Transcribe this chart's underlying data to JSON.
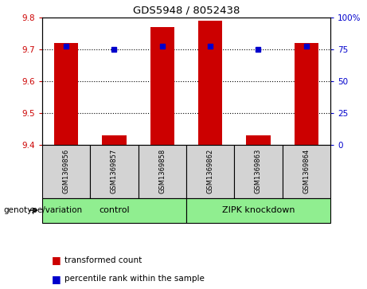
{
  "title": "GDS5948 / 8052438",
  "samples": [
    "GSM1369856",
    "GSM1369857",
    "GSM1369858",
    "GSM1369862",
    "GSM1369863",
    "GSM1369864"
  ],
  "red_values": [
    9.72,
    9.43,
    9.77,
    9.79,
    9.43,
    9.72
  ],
  "blue_values": [
    9.71,
    9.7,
    9.71,
    9.71,
    9.7,
    9.71
  ],
  "ylim_left": [
    9.4,
    9.8
  ],
  "ylim_right": [
    0,
    100
  ],
  "yticks_left": [
    9.4,
    9.5,
    9.6,
    9.7,
    9.8
  ],
  "yticks_right": [
    0,
    25,
    50,
    75,
    100
  ],
  "grid_values": [
    9.5,
    9.6,
    9.7
  ],
  "bar_color": "#cc0000",
  "dot_color": "#0000cc",
  "bar_bottom": 9.4,
  "groups_data": [
    {
      "label": "control",
      "start": 0,
      "end": 2
    },
    {
      "label": "ZIPK knockdown",
      "start": 3,
      "end": 5
    }
  ],
  "group_label_prefix": "genotype/variation",
  "legend_items": [
    {
      "color": "#cc0000",
      "label": "transformed count"
    },
    {
      "color": "#0000cc",
      "label": "percentile rank within the sample"
    }
  ],
  "left_tick_color": "#cc0000",
  "right_tick_color": "#0000cc",
  "sample_box_color": "#d3d3d3",
  "group_box_color": "#90ee90"
}
